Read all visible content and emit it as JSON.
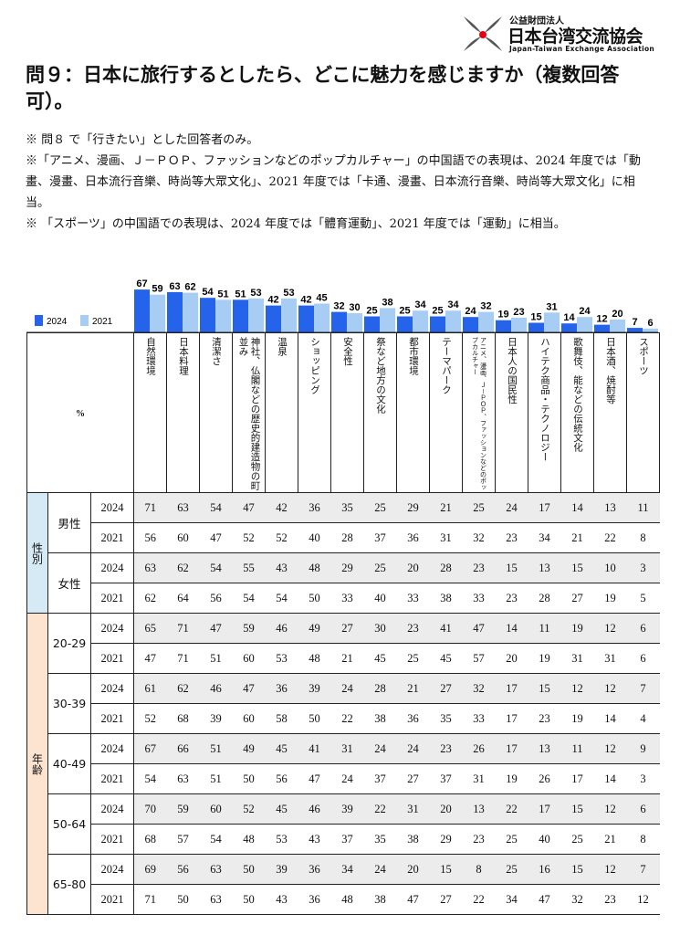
{
  "logo": {
    "org_small": "公益財団法人",
    "org_name": "日本台湾交流協会",
    "org_en": "Japan-Taiwan Exchange Association"
  },
  "title": "問９：日本に旅行するとしたら、どこに魅力を感じますか（複数回答可）。",
  "notes": [
    "※ 問８ で「行きたい」とした回答者のみ。",
    "※「アニメ、漫画、Ｊ－ＰＯＰ、ファッションなどのポップカルチャー」の中国語での表現は、2024 年度では「動畫、漫畫、日本流行音樂、時尚等大眾文化」、2021 年度では「卡通、漫畫、日本流行音樂、時尚等大眾文化」に相当。",
    "※ 「スポーツ」の中国語での表現は、2024 年度では「體育運動」、2021 年度では「運動」に相当。"
  ],
  "colors": {
    "s2024": "#2563eb",
    "s2021": "#a8cdf5",
    "sex": "#d6eaf5",
    "age": "#fce4d0"
  },
  "chart_data": {
    "type": "bar",
    "categories": [
      "自然環境",
      "日本料理",
      "清潔さ",
      "神社、仏閣などの歴史的建造物の町並み",
      "温泉",
      "ショッピング",
      "安全性",
      "祭など地方の文化",
      "都市環境",
      "テーマパーク",
      "アニメ、漫画、Ｊ－ＰＯＰ、ファッションなどのポップカルチャー",
      "日本人の国民性",
      "ハイテク商品・テクノロジー",
      "歌舞伎、能などの伝統文化",
      "日本酒、焼酎等",
      "スポーツ"
    ],
    "series": [
      {
        "name": "2024",
        "values": [
          67,
          63,
          54,
          51,
          42,
          42,
          32,
          25,
          25,
          25,
          24,
          19,
          15,
          14,
          12,
          7
        ]
      },
      {
        "name": "2021",
        "values": [
          59,
          62,
          51,
          53,
          53,
          45,
          30,
          38,
          34,
          34,
          32,
          23,
          31,
          24,
          20,
          6
        ]
      }
    ],
    "unit_label": "%",
    "legend": "left",
    "ylim": [
      0,
      100
    ]
  },
  "table": {
    "unit": "%",
    "groups": [
      {
        "label": "性別",
        "kind": "sex",
        "subgroups": [
          {
            "label": "男性",
            "rows": [
              {
                "year": "2024",
                "values": [
                  71,
                  63,
                  54,
                  47,
                  42,
                  36,
                  35,
                  25,
                  29,
                  21,
                  25,
                  24,
                  17,
                  14,
                  13,
                  11
                ]
              },
              {
                "year": "2021",
                "values": [
                  56,
                  60,
                  47,
                  52,
                  52,
                  40,
                  28,
                  37,
                  36,
                  31,
                  32,
                  23,
                  34,
                  21,
                  22,
                  8
                ]
              }
            ]
          },
          {
            "label": "女性",
            "rows": [
              {
                "year": "2024",
                "values": [
                  63,
                  62,
                  54,
                  55,
                  43,
                  48,
                  29,
                  25,
                  20,
                  28,
                  23,
                  15,
                  13,
                  15,
                  10,
                  3
                ]
              },
              {
                "year": "2021",
                "values": [
                  62,
                  64,
                  56,
                  54,
                  54,
                  50,
                  33,
                  40,
                  33,
                  38,
                  33,
                  23,
                  28,
                  27,
                  19,
                  5
                ]
              }
            ]
          }
        ]
      },
      {
        "label": "年齢",
        "kind": "age",
        "subgroups": [
          {
            "label": "20-29",
            "rows": [
              {
                "year": "2024",
                "values": [
                  65,
                  71,
                  47,
                  59,
                  46,
                  49,
                  27,
                  30,
                  23,
                  41,
                  47,
                  14,
                  11,
                  19,
                  12,
                  6
                ]
              },
              {
                "year": "2021",
                "values": [
                  47,
                  71,
                  51,
                  60,
                  53,
                  48,
                  21,
                  45,
                  25,
                  45,
                  57,
                  20,
                  19,
                  31,
                  31,
                  6
                ]
              }
            ]
          },
          {
            "label": "30-39",
            "rows": [
              {
                "year": "2024",
                "values": [
                  61,
                  62,
                  46,
                  47,
                  36,
                  39,
                  24,
                  28,
                  21,
                  27,
                  32,
                  17,
                  15,
                  12,
                  12,
                  7
                ]
              },
              {
                "year": "2021",
                "values": [
                  52,
                  68,
                  39,
                  60,
                  58,
                  50,
                  22,
                  38,
                  36,
                  35,
                  33,
                  17,
                  23,
                  19,
                  14,
                  4
                ]
              }
            ]
          },
          {
            "label": "40-49",
            "rows": [
              {
                "year": "2024",
                "values": [
                  67,
                  66,
                  51,
                  49,
                  45,
                  41,
                  31,
                  24,
                  24,
                  23,
                  26,
                  17,
                  13,
                  11,
                  12,
                  9
                ]
              },
              {
                "year": "2021",
                "values": [
                  54,
                  63,
                  51,
                  50,
                  56,
                  47,
                  24,
                  37,
                  27,
                  37,
                  31,
                  19,
                  26,
                  17,
                  14,
                  3
                ]
              }
            ]
          },
          {
            "label": "50-64",
            "rows": [
              {
                "year": "2024",
                "values": [
                  70,
                  59,
                  60,
                  52,
                  45,
                  46,
                  39,
                  22,
                  31,
                  20,
                  13,
                  22,
                  17,
                  15,
                  12,
                  6
                ]
              },
              {
                "year": "2021",
                "values": [
                  68,
                  57,
                  54,
                  48,
                  53,
                  43,
                  37,
                  35,
                  38,
                  29,
                  23,
                  25,
                  40,
                  25,
                  21,
                  8
                ]
              }
            ]
          },
          {
            "label": "65-80",
            "rows": [
              {
                "year": "2024",
                "values": [
                  69,
                  56,
                  63,
                  50,
                  39,
                  36,
                  34,
                  24,
                  20,
                  15,
                  8,
                  25,
                  16,
                  15,
                  12,
                  7
                ]
              },
              {
                "year": "2021",
                "values": [
                  71,
                  50,
                  63,
                  50,
                  43,
                  36,
                  48,
                  38,
                  47,
                  27,
                  22,
                  34,
                  47,
                  32,
                  23,
                  12
                ]
              }
            ]
          }
        ]
      }
    ]
  }
}
